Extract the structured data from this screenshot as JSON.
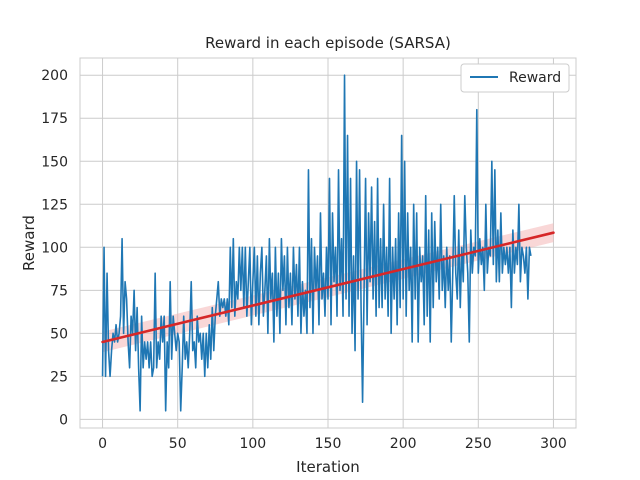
{
  "chart_data": {
    "type": "line",
    "title": "Reward in each episode (SARSA)",
    "xlabel": "Iteration",
    "ylabel": "Reward",
    "xlim": [
      -15,
      315
    ],
    "ylim": [
      -5,
      210
    ],
    "xticks": [
      0,
      50,
      100,
      150,
      200,
      250,
      300
    ],
    "yticks": [
      0,
      25,
      50,
      75,
      100,
      125,
      150,
      175,
      200
    ],
    "grid": true,
    "legend": {
      "placement": "top-right",
      "entries": [
        "Reward"
      ]
    },
    "series": [
      {
        "name": "Reward",
        "color": "#1f77b4",
        "points": [
          [
            0,
            25
          ],
          [
            1,
            100
          ],
          [
            2,
            25
          ],
          [
            3,
            85
          ],
          [
            4,
            40
          ],
          [
            5,
            25
          ],
          [
            6,
            40
          ],
          [
            7,
            50
          ],
          [
            8,
            45
          ],
          [
            9,
            55
          ],
          [
            10,
            45
          ],
          [
            11,
            50
          ],
          [
            12,
            60
          ],
          [
            13,
            105
          ],
          [
            14,
            50
          ],
          [
            15,
            80
          ],
          [
            16,
            70
          ],
          [
            17,
            45
          ],
          [
            18,
            30
          ],
          [
            19,
            60
          ],
          [
            20,
            50
          ],
          [
            21,
            75
          ],
          [
            22,
            40
          ],
          [
            23,
            65
          ],
          [
            24,
            30
          ],
          [
            25,
            5
          ],
          [
            26,
            60
          ],
          [
            27,
            30
          ],
          [
            28,
            45
          ],
          [
            29,
            35
          ],
          [
            30,
            45
          ],
          [
            31,
            30
          ],
          [
            32,
            45
          ],
          [
            33,
            25
          ],
          [
            34,
            30
          ],
          [
            35,
            85
          ],
          [
            36,
            30
          ],
          [
            37,
            45
          ],
          [
            38,
            35
          ],
          [
            39,
            60
          ],
          [
            40,
            45
          ],
          [
            41,
            60
          ],
          [
            42,
            5
          ],
          [
            43,
            45
          ],
          [
            44,
            30
          ],
          [
            45,
            80
          ],
          [
            46,
            35
          ],
          [
            47,
            60
          ],
          [
            48,
            50
          ],
          [
            49,
            40
          ],
          [
            50,
            50
          ],
          [
            51,
            45
          ],
          [
            52,
            5
          ],
          [
            53,
            30
          ],
          [
            54,
            60
          ],
          [
            55,
            35
          ],
          [
            56,
            45
          ],
          [
            57,
            30
          ],
          [
            58,
            50
          ],
          [
            59,
            80
          ],
          [
            60,
            40
          ],
          [
            61,
            45
          ],
          [
            62,
            30
          ],
          [
            63,
            60
          ],
          [
            64,
            45
          ],
          [
            65,
            50
          ],
          [
            66,
            35
          ],
          [
            67,
            50
          ],
          [
            68,
            25
          ],
          [
            69,
            50
          ],
          [
            70,
            30
          ],
          [
            71,
            55
          ],
          [
            72,
            35
          ],
          [
            73,
            65
          ],
          [
            74,
            40
          ],
          [
            75,
            60
          ],
          [
            76,
            70
          ],
          [
            77,
            80
          ],
          [
            78,
            60
          ],
          [
            79,
            70
          ],
          [
            80,
            65
          ],
          [
            81,
            70
          ],
          [
            82,
            60
          ],
          [
            83,
            70
          ],
          [
            84,
            55
          ],
          [
            85,
            100
          ],
          [
            86,
            65
          ],
          [
            87,
            105
          ],
          [
            88,
            60
          ],
          [
            89,
            80
          ],
          [
            90,
            70
          ],
          [
            91,
            100
          ],
          [
            92,
            75
          ],
          [
            93,
            100
          ],
          [
            94,
            65
          ],
          [
            95,
            100
          ],
          [
            96,
            60
          ],
          [
            97,
            80
          ],
          [
            98,
            100
          ],
          [
            99,
            55
          ],
          [
            100,
            80
          ],
          [
            101,
            100
          ],
          [
            102,
            60
          ],
          [
            103,
            95
          ],
          [
            104,
            55
          ],
          [
            105,
            85
          ],
          [
            106,
            100
          ],
          [
            107,
            60
          ],
          [
            108,
            75
          ],
          [
            109,
            95
          ],
          [
            110,
            50
          ],
          [
            111,
            105
          ],
          [
            112,
            70
          ],
          [
            113,
            85
          ],
          [
            114,
            45
          ],
          [
            115,
            100
          ],
          [
            116,
            60
          ],
          [
            117,
            85
          ],
          [
            118,
            50
          ],
          [
            119,
            105
          ],
          [
            120,
            75
          ],
          [
            121,
            95
          ],
          [
            122,
            55
          ],
          [
            123,
            100
          ],
          [
            124,
            65
          ],
          [
            125,
            85
          ],
          [
            126,
            55
          ],
          [
            127,
            100
          ],
          [
            128,
            70
          ],
          [
            129,
            90
          ],
          [
            130,
            60
          ],
          [
            131,
            100
          ],
          [
            132,
            50
          ],
          [
            133,
            80
          ],
          [
            134,
            60
          ],
          [
            135,
            75
          ],
          [
            136,
            50
          ],
          [
            137,
            145
          ],
          [
            138,
            65
          ],
          [
            139,
            105
          ],
          [
            140,
            50
          ],
          [
            141,
            100
          ],
          [
            142,
            75
          ],
          [
            143,
            95
          ],
          [
            144,
            55
          ],
          [
            145,
            120
          ],
          [
            146,
            70
          ],
          [
            147,
            85
          ],
          [
            148,
            60
          ],
          [
            149,
            100
          ],
          [
            150,
            70
          ],
          [
            151,
            140
          ],
          [
            152,
            55
          ],
          [
            153,
            120
          ],
          [
            154,
            80
          ],
          [
            155,
            100
          ],
          [
            156,
            60
          ],
          [
            157,
            145
          ],
          [
            158,
            75
          ],
          [
            159,
            105
          ],
          [
            160,
            60
          ],
          [
            161,
            200
          ],
          [
            162,
            70
          ],
          [
            163,
            165
          ],
          [
            164,
            60
          ],
          [
            165,
            140
          ],
          [
            166,
            50
          ],
          [
            167,
            95
          ],
          [
            168,
            40
          ],
          [
            169,
            150
          ],
          [
            170,
            70
          ],
          [
            171,
            145
          ],
          [
            172,
            65
          ],
          [
            173,
            10
          ],
          [
            174,
            75
          ],
          [
            175,
            140
          ],
          [
            176,
            55
          ],
          [
            177,
            120
          ],
          [
            178,
            80
          ],
          [
            179,
            135
          ],
          [
            180,
            70
          ],
          [
            181,
            115
          ],
          [
            182,
            60
          ],
          [
            183,
            140
          ],
          [
            184,
            65
          ],
          [
            185,
            105
          ],
          [
            186,
            65
          ],
          [
            187,
            125
          ],
          [
            188,
            70
          ],
          [
            189,
            100
          ],
          [
            190,
            60
          ],
          [
            191,
            140
          ],
          [
            192,
            50
          ],
          [
            193,
            100
          ],
          [
            194,
            70
          ],
          [
            195,
            105
          ],
          [
            196,
            55
          ],
          [
            197,
            120
          ],
          [
            198,
            65
          ],
          [
            199,
            165
          ],
          [
            200,
            70
          ],
          [
            201,
            150
          ],
          [
            202,
            60
          ],
          [
            203,
            120
          ],
          [
            204,
            75
          ],
          [
            205,
            100
          ],
          [
            206,
            45
          ],
          [
            207,
            125
          ],
          [
            208,
            70
          ],
          [
            209,
            120
          ],
          [
            210,
            45
          ],
          [
            211,
            100
          ],
          [
            212,
            80
          ],
          [
            213,
            95
          ],
          [
            214,
            55
          ],
          [
            215,
            130
          ],
          [
            216,
            60
          ],
          [
            217,
            110
          ],
          [
            218,
            45
          ],
          [
            219,
            120
          ],
          [
            220,
            65
          ],
          [
            221,
            115
          ],
          [
            222,
            80
          ],
          [
            223,
            100
          ],
          [
            224,
            70
          ],
          [
            225,
            125
          ],
          [
            226,
            75
          ],
          [
            227,
            95
          ],
          [
            228,
            65
          ],
          [
            229,
            100
          ],
          [
            230,
            75
          ],
          [
            231,
            95
          ],
          [
            232,
            45
          ],
          [
            233,
            85
          ],
          [
            234,
            130
          ],
          [
            235,
            85
          ],
          [
            236,
            70
          ],
          [
            237,
            110
          ],
          [
            238,
            65
          ],
          [
            239,
            100
          ],
          [
            240,
            80
          ],
          [
            241,
            130
          ],
          [
            242,
            100
          ],
          [
            243,
            85
          ],
          [
            244,
            45
          ],
          [
            245,
            110
          ],
          [
            246,
            85
          ],
          [
            247,
            100
          ],
          [
            248,
            95
          ],
          [
            249,
            180
          ],
          [
            250,
            85
          ],
          [
            251,
            105
          ],
          [
            252,
            90
          ],
          [
            253,
            100
          ],
          [
            254,
            75
          ],
          [
            255,
            125
          ],
          [
            256,
            85
          ],
          [
            257,
            100
          ],
          [
            258,
            95
          ],
          [
            259,
            150
          ],
          [
            260,
            90
          ],
          [
            261,
            145
          ],
          [
            262,
            80
          ],
          [
            263,
            110
          ],
          [
            264,
            80
          ],
          [
            265,
            120
          ],
          [
            266,
            85
          ],
          [
            267,
            100
          ],
          [
            268,
            90
          ],
          [
            269,
            100
          ],
          [
            270,
            85
          ],
          [
            271,
            100
          ],
          [
            272,
            65
          ],
          [
            273,
            110
          ],
          [
            274,
            85
          ],
          [
            275,
            100
          ],
          [
            276,
            90
          ],
          [
            277,
            125
          ],
          [
            278,
            80
          ],
          [
            279,
            100
          ],
          [
            280,
            95
          ],
          [
            281,
            85
          ],
          [
            282,
            100
          ],
          [
            283,
            70
          ],
          [
            284,
            100
          ],
          [
            285,
            95
          ]
        ]
      }
    ],
    "regression": {
      "color": "#d62728",
      "band_color": "#f4b6b6",
      "x": [
        0,
        300
      ],
      "y": [
        45,
        108.5
      ],
      "band_lower": [
        39,
        103
      ],
      "band_upper": [
        51,
        114
      ]
    }
  }
}
